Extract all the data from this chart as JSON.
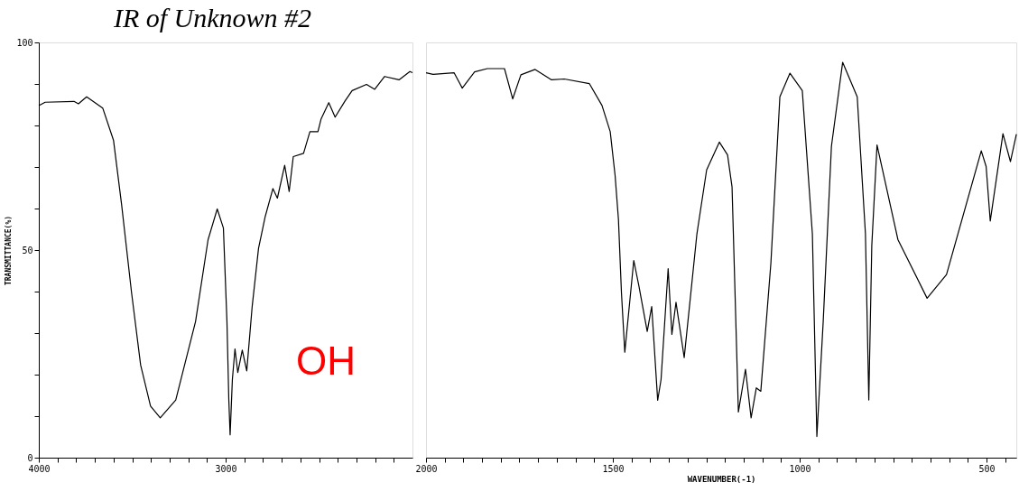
{
  "chart_data": [
    {
      "type": "line",
      "title": "IR of Unknown #2",
      "ylabel": "TRANSMITTANCE(%)",
      "annotations": [
        "OH"
      ],
      "x": [
        4000,
        3966,
        3812,
        3788,
        3744,
        3658,
        3600,
        3557,
        3504,
        3455,
        3402,
        3350,
        3267,
        3161,
        3094,
        3045,
        3012,
        2993,
        2983,
        2976,
        2964,
        2950,
        2935,
        2911,
        2887,
        2858,
        2824,
        2788,
        2747,
        2723,
        2684,
        2660,
        2638,
        2583,
        2549,
        2506,
        2489,
        2448,
        2414,
        2361,
        2323,
        2246,
        2202,
        2149,
        2072,
        2014,
        2000
      ],
      "series": [
        {
          "color": "#000000",
          "values": [
            84.8,
            85.6,
            85.8,
            85.2,
            86.9,
            84.2,
            76.4,
            61,
            39.9,
            22.3,
            12.4,
            9.6,
            13.9,
            32.8,
            52.5,
            59.9,
            55.3,
            32.8,
            13.9,
            5.5,
            18.8,
            26.2,
            20.5,
            25.9,
            20.9,
            36.4,
            50.4,
            58.1,
            64.8,
            62.5,
            70.4,
            64.1,
            72.5,
            73.3,
            78.5,
            78.5,
            81.6,
            85.5,
            82,
            85.9,
            88.4,
            89.9,
            88.7,
            91.8,
            91,
            93,
            92.7
          ]
        }
      ],
      "xlim": [
        4000,
        2000
      ],
      "xticks": [
        4000,
        {
          "value": 3900,
          "label": null
        },
        {
          "value": 3800,
          "label": null
        },
        {
          "value": 3700,
          "label": null
        },
        {
          "value": 3600,
          "label": null
        },
        {
          "value": 3500,
          "label": null
        },
        {
          "value": 3400,
          "label": null
        },
        {
          "value": 3300,
          "label": null
        },
        {
          "value": 3200,
          "label": null
        },
        {
          "value": 3100,
          "label": null
        },
        3000,
        {
          "value": 2900,
          "label": null
        },
        {
          "value": 2800,
          "label": null
        },
        {
          "value": 2700,
          "label": null
        },
        {
          "value": 2600,
          "label": null
        },
        {
          "value": 2500,
          "label": null
        },
        {
          "value": 2400,
          "label": null
        },
        {
          "value": 2300,
          "label": null
        },
        {
          "value": 2200,
          "label": null
        },
        {
          "value": 2100,
          "label": null
        }
      ],
      "ylim": [
        0,
        100
      ],
      "yticks": [
        0,
        {
          "value": 10,
          "label": null
        },
        {
          "value": 20,
          "label": null
        },
        {
          "value": 30,
          "label": null
        },
        {
          "value": 40,
          "label": null
        },
        50,
        {
          "value": 60,
          "label": null
        },
        {
          "value": 70,
          "label": null
        },
        {
          "value": 80,
          "label": null
        },
        {
          "value": 90,
          "label": null
        },
        100
      ],
      "grid": false,
      "legend": false
    },
    {
      "type": "line",
      "xlabel": "WAVENUMBER(-1)",
      "x": [
        2000,
        1981,
        1925,
        1903,
        1870,
        1836,
        1790,
        1768,
        1746,
        1708,
        1664,
        1630,
        1563,
        1529,
        1507,
        1494,
        1485,
        1477,
        1468,
        1444,
        1430,
        1408,
        1396,
        1380,
        1371,
        1352,
        1342,
        1331,
        1309,
        1275,
        1249,
        1215,
        1193,
        1181,
        1164,
        1145,
        1130,
        1116,
        1104,
        1077,
        1053,
        1026,
        993,
        966,
        954,
        937,
        915,
        885,
        846,
        824,
        815,
        807,
        793,
        737,
        659,
        607,
        514,
        501,
        490,
        456,
        436,
        420
      ],
      "series": [
        {
          "color": "#000000",
          "values": [
            92.7,
            92.3,
            92.7,
            89,
            92.9,
            93.7,
            93.7,
            86.4,
            92.2,
            93.5,
            91,
            91.2,
            90.1,
            84.8,
            78.5,
            68,
            57.4,
            39.8,
            25.4,
            47.5,
            41.2,
            30.4,
            36.4,
            13.8,
            18.8,
            45.5,
            29.7,
            37.4,
            24.1,
            53.9,
            69.3,
            76,
            72.9,
            65.2,
            11,
            21.3,
            9.6,
            16.8,
            16,
            46.9,
            86.9,
            92.6,
            88.4,
            53.9,
            5.1,
            32.8,
            75,
            95.2,
            86.9,
            53.9,
            13.9,
            51.1,
            75.3,
            52.5,
            38.4,
            44.1,
            73.9,
            70.1,
            57,
            78,
            71.3,
            77.9
          ]
        }
      ],
      "xlim": [
        2000,
        420
      ],
      "xticks": [
        2000,
        {
          "value": 1950,
          "label": null
        },
        {
          "value": 1900,
          "label": null
        },
        {
          "value": 1850,
          "label": null
        },
        {
          "value": 1800,
          "label": null
        },
        {
          "value": 1750,
          "label": null
        },
        {
          "value": 1700,
          "label": null
        },
        {
          "value": 1650,
          "label": null
        },
        {
          "value": 1600,
          "label": null
        },
        {
          "value": 1550,
          "label": null
        },
        1500,
        {
          "value": 1450,
          "label": null
        },
        {
          "value": 1400,
          "label": null
        },
        {
          "value": 1350,
          "label": null
        },
        {
          "value": 1300,
          "label": null
        },
        {
          "value": 1250,
          "label": null
        },
        {
          "value": 1200,
          "label": null
        },
        {
          "value": 1150,
          "label": null
        },
        {
          "value": 1100,
          "label": null
        },
        {
          "value": 1050,
          "label": null
        },
        1000,
        {
          "value": 950,
          "label": null
        },
        {
          "value": 900,
          "label": null
        },
        {
          "value": 850,
          "label": null
        },
        {
          "value": 800,
          "label": null
        },
        {
          "value": 750,
          "label": null
        },
        {
          "value": 700,
          "label": null
        },
        {
          "value": 650,
          "label": null
        },
        {
          "value": 600,
          "label": null
        },
        {
          "value": 550,
          "label": null
        },
        500,
        {
          "value": 450,
          "label": null
        }
      ],
      "ylim": [
        0,
        100
      ],
      "tick_labels": "x",
      "grid": false,
      "legend": false
    }
  ]
}
